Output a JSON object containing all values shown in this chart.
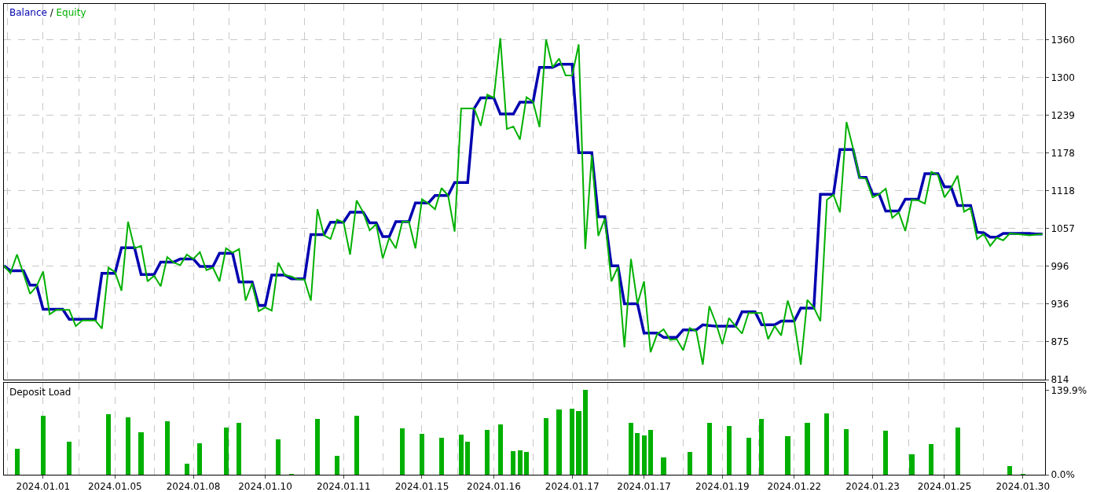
{
  "chart_data": [
    {
      "type": "line",
      "legend": "top left",
      "grid": true,
      "tick_labels": "y",
      "annotations": [
        "/"
      ],
      "categories": [
        null,
        null,
        null,
        null,
        null,
        null,
        "2024.01.01",
        null,
        null,
        null,
        null,
        null,
        null,
        null,
        null,
        null,
        null,
        "2024.01.05",
        null,
        null,
        null,
        null,
        null,
        null,
        null,
        null,
        null,
        null,
        null,
        "2024.01.08",
        null,
        null,
        null,
        null,
        null,
        null,
        null,
        null,
        null,
        null,
        "2024.01.10",
        null,
        null,
        null,
        null,
        null,
        null,
        null,
        null,
        null,
        null,
        null,
        "2024.01.11",
        null,
        null,
        null,
        null,
        null,
        null,
        null,
        null,
        null,
        null,
        null,
        "2024.01.15",
        null,
        null,
        null,
        null,
        null,
        null,
        null,
        null,
        null,
        null,
        "2024.01.16",
        null,
        null,
        null,
        null,
        null,
        null,
        null,
        null,
        null,
        null,
        null,
        "2024.01.17",
        null,
        null,
        null,
        null,
        null,
        null,
        null,
        null,
        null,
        null,
        "2024.01.17",
        null,
        null,
        null,
        null,
        null,
        null,
        null,
        null,
        null,
        null,
        null,
        "2024.01.19",
        null,
        null,
        null,
        null,
        null,
        null,
        null,
        null,
        null,
        null,
        "2024.01.22",
        null,
        null,
        null,
        null,
        null,
        null,
        null,
        null,
        null,
        null,
        null,
        "2024.01.23",
        null,
        null,
        null,
        null,
        null,
        null,
        null,
        null,
        null,
        null,
        "2024.01.25",
        null,
        null,
        null,
        null,
        null,
        null,
        null,
        null,
        null,
        null,
        null,
        "2024.01.30",
        null,
        null,
        null
      ],
      "ylim": [
        814,
        1418
      ],
      "yticks": [
        814,
        875,
        936,
        996,
        1057,
        1118,
        1178,
        1239,
        1300,
        1360
      ],
      "series": [
        {
          "name": "Balance",
          "color": "#0000b0",
          "values": [
            997,
            989,
            989,
            989,
            966,
            966,
            927,
            927,
            927,
            927,
            911,
            911,
            911,
            911,
            911,
            985,
            985,
            985,
            1026,
            1026,
            1026,
            983,
            983,
            983,
            1003,
            1003,
            1003,
            1008,
            1008,
            1008,
            996,
            996,
            996,
            1017,
            1017,
            1017,
            971,
            971,
            971,
            933,
            933,
            982,
            982,
            982,
            976,
            976,
            976,
            1047,
            1047,
            1047,
            1067,
            1067,
            1067,
            1083,
            1083,
            1083,
            1066,
            1066,
            1044,
            1044,
            1068,
            1068,
            1068,
            1098,
            1098,
            1098,
            1110,
            1110,
            1110,
            1131,
            1131,
            1131,
            1250,
            1267,
            1267,
            1267,
            1241,
            1241,
            1241,
            1260,
            1260,
            1260,
            1316,
            1316,
            1316,
            1321,
            1321,
            1321,
            1179,
            1179,
            1179,
            1076,
            1076,
            997,
            997,
            936,
            936,
            936,
            889,
            889,
            889,
            882,
            882,
            882,
            894,
            894,
            894,
            902,
            901,
            900,
            900,
            900,
            900,
            923,
            923,
            923,
            902,
            902,
            902,
            908,
            908,
            908,
            929,
            929,
            929,
            1112,
            1112,
            1112,
            1184,
            1184,
            1184,
            1139,
            1139,
            1112,
            1112,
            1085,
            1085,
            1085,
            1104,
            1104,
            1104,
            1145,
            1145,
            1145,
            1124,
            1124,
            1094,
            1094,
            1094,
            1051,
            1050,
            1043,
            1043,
            1049,
            1049,
            1049,
            1049,
            1049,
            1048,
            1048
          ]
        },
        {
          "name": "Equity",
          "color": "#00b000",
          "values": [
            997,
            985,
            1015,
            984,
            952,
            964,
            988,
            919,
            926,
            926,
            926,
            900,
            909,
            909,
            909,
            896,
            994,
            987,
            957,
            1068,
            1025,
            1029,
            972,
            981,
            964,
            1011,
            1002,
            998,
            1015,
            1008,
            1019,
            990,
            994,
            972,
            1025,
            1018,
            1024,
            941,
            969,
            924,
            930,
            925,
            1002,
            982,
            980,
            975,
            975,
            941,
            1088,
            1046,
            1040,
            1071,
            1067,
            1015,
            1102,
            1083,
            1054,
            1064,
            1009,
            1042,
            1025,
            1068,
            1068,
            1025,
            1104,
            1097,
            1088,
            1122,
            1110,
            1052,
            1250,
            1250,
            1250,
            1222,
            1272,
            1267,
            1363,
            1217,
            1221,
            1200,
            1268,
            1261,
            1220,
            1361,
            1316,
            1330,
            1303,
            1303,
            1353,
            1024,
            1175,
            1045,
            1073,
            972,
            995,
            866,
            1008,
            936,
            972,
            858,
            887,
            895,
            878,
            879,
            861,
            897,
            892,
            838,
            932,
            905,
            871,
            913,
            900,
            888,
            921,
            921,
            921,
            879,
            900,
            885,
            941,
            908,
            838,
            942,
            930,
            908,
            1103,
            1111,
            1083,
            1228,
            1186,
            1139,
            1137,
            1107,
            1112,
            1121,
            1074,
            1083,
            1053,
            1103,
            1102,
            1097,
            1148,
            1143,
            1107,
            1122,
            1142,
            1084,
            1090,
            1040,
            1048,
            1029,
            1042,
            1038,
            1049,
            1048,
            1047,
            1046,
            1047,
            1048
          ]
        }
      ]
    },
    {
      "type": "bar",
      "title": "Deposit Load",
      "grid": "x",
      "categories": [
        null,
        null,
        null,
        null,
        null,
        null,
        "2024.01.01",
        null,
        null,
        null,
        null,
        null,
        null,
        null,
        null,
        null,
        null,
        "2024.01.05",
        null,
        null,
        null,
        null,
        null,
        null,
        null,
        null,
        null,
        null,
        null,
        "2024.01.08",
        null,
        null,
        null,
        null,
        null,
        null,
        null,
        null,
        null,
        null,
        "2024.01.10",
        null,
        null,
        null,
        null,
        null,
        null,
        null,
        null,
        null,
        null,
        null,
        "2024.01.11",
        null,
        null,
        null,
        null,
        null,
        null,
        null,
        null,
        null,
        null,
        null,
        "2024.01.15",
        null,
        null,
        null,
        null,
        null,
        null,
        null,
        null,
        null,
        null,
        "2024.01.16",
        null,
        null,
        null,
        null,
        null,
        null,
        null,
        null,
        null,
        null,
        null,
        "2024.01.17",
        null,
        null,
        null,
        null,
        null,
        null,
        null,
        null,
        null,
        null,
        "2024.01.17",
        null,
        null,
        null,
        null,
        null,
        null,
        null,
        null,
        null,
        null,
        null,
        "2024.01.19",
        null,
        null,
        null,
        null,
        null,
        null,
        null,
        null,
        null,
        null,
        "2024.01.22",
        null,
        null,
        null,
        null,
        null,
        null,
        null,
        null,
        null,
        null,
        null,
        "2024.01.23",
        null,
        null,
        null,
        null,
        null,
        null,
        null,
        null,
        null,
        null,
        "2024.01.25",
        null,
        null,
        null,
        null,
        null,
        null,
        null,
        null,
        null,
        null,
        null,
        "2024.01.30",
        null,
        null,
        null
      ],
      "ylim": [
        0,
        152
      ],
      "yticks": [
        {
          "value": 0,
          "label": "0.0%"
        },
        {
          "value": 139.9,
          "label": "139.9%"
        }
      ],
      "color": "#00b000",
      "values": [
        null,
        null,
        43,
        null,
        null,
        null,
        97,
        null,
        null,
        null,
        54,
        null,
        null,
        null,
        null,
        null,
        100,
        null,
        null,
        95,
        null,
        70,
        null,
        null,
        null,
        88,
        null,
        null,
        18,
        null,
        52,
        null,
        null,
        null,
        78,
        null,
        86,
        null,
        null,
        null,
        null,
        null,
        58,
        null,
        1,
        null,
        null,
        null,
        92,
        null,
        null,
        31,
        null,
        null,
        97,
        null,
        null,
        null,
        null,
        null,
        null,
        76,
        null,
        null,
        68,
        null,
        null,
        61,
        null,
        null,
        66,
        54,
        null,
        null,
        74,
        null,
        83,
        null,
        39,
        40,
        38,
        null,
        null,
        93,
        null,
        108,
        null,
        109,
        105,
        139.9,
        null,
        null,
        null,
        null,
        null,
        null,
        86,
        69,
        65,
        74,
        null,
        28,
        null,
        null,
        null,
        38,
        null,
        null,
        86,
        null,
        null,
        81,
        null,
        null,
        61,
        null,
        92,
        null,
        null,
        null,
        64,
        null,
        null,
        85,
        null,
        null,
        101,
        null,
        null,
        75,
        null,
        null,
        null,
        null,
        null,
        72,
        null,
        null,
        null,
        34,
        null,
        null,
        50,
        null,
        null,
        null,
        78,
        null,
        null,
        null,
        null,
        null,
        null,
        null,
        14,
        null,
        1,
        null,
        null,
        null
      ]
    }
  ]
}
